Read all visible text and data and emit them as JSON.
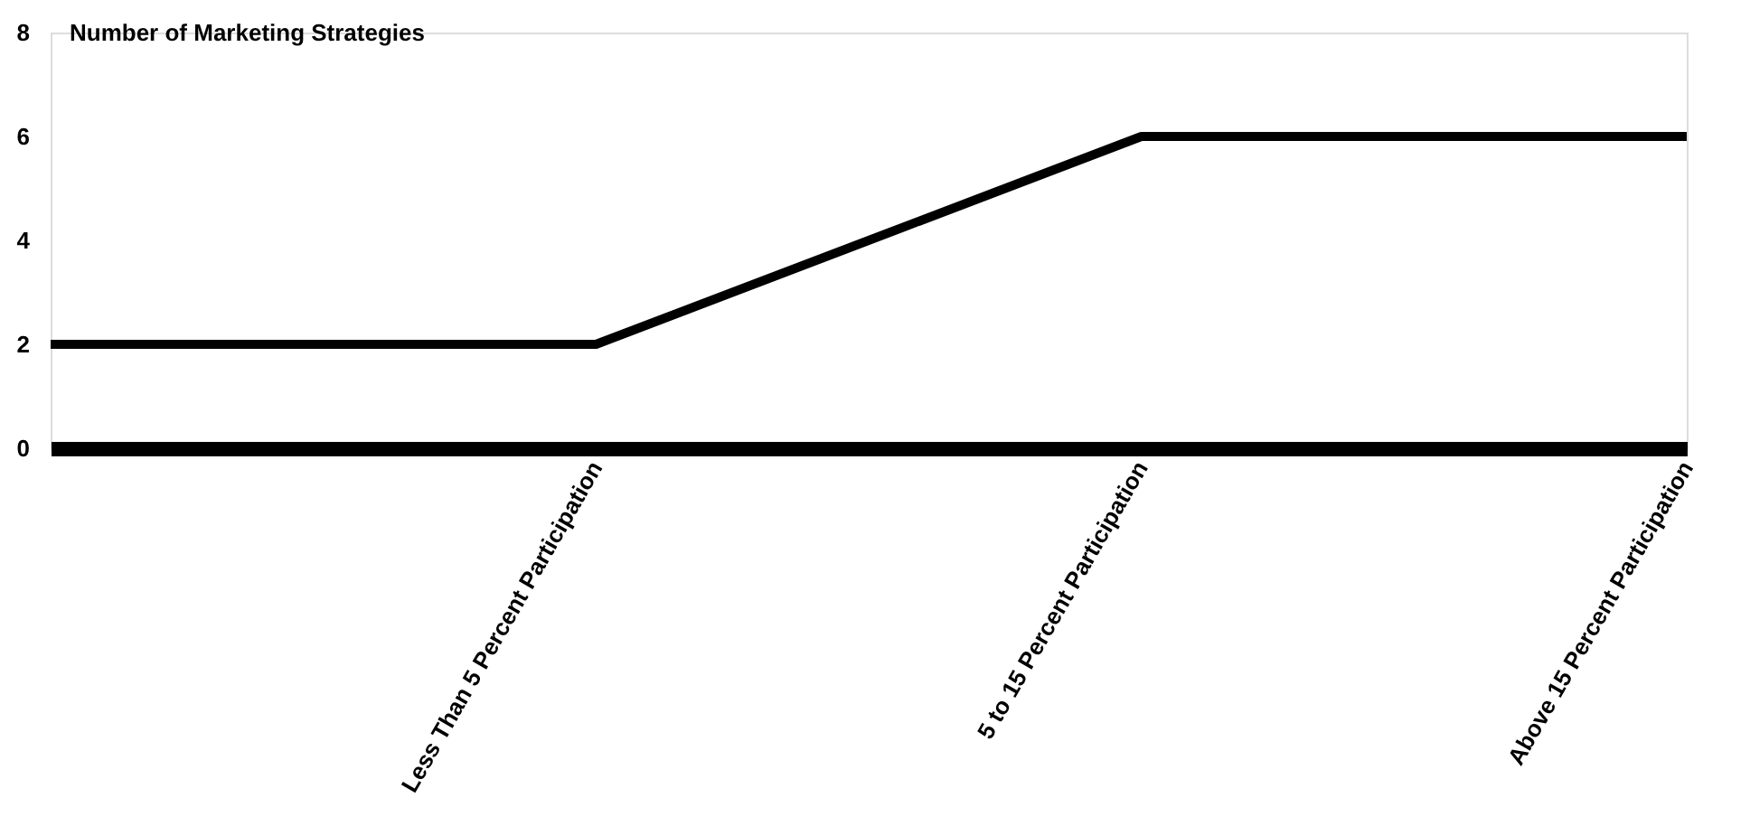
{
  "chart_data": {
    "type": "line",
    "ylabel": "Number of Marketing Strategies",
    "categories": [
      null,
      "Less Than 5 Percent Participation",
      "5 to 15 Percent Participation",
      "Above 15 Percent Participation"
    ],
    "values": [
      2,
      2,
      6,
      6
    ],
    "color": "#000000",
    "ylim": [
      0,
      8
    ],
    "yticks": [
      0,
      2,
      4,
      6,
      8
    ],
    "grid": false
  }
}
